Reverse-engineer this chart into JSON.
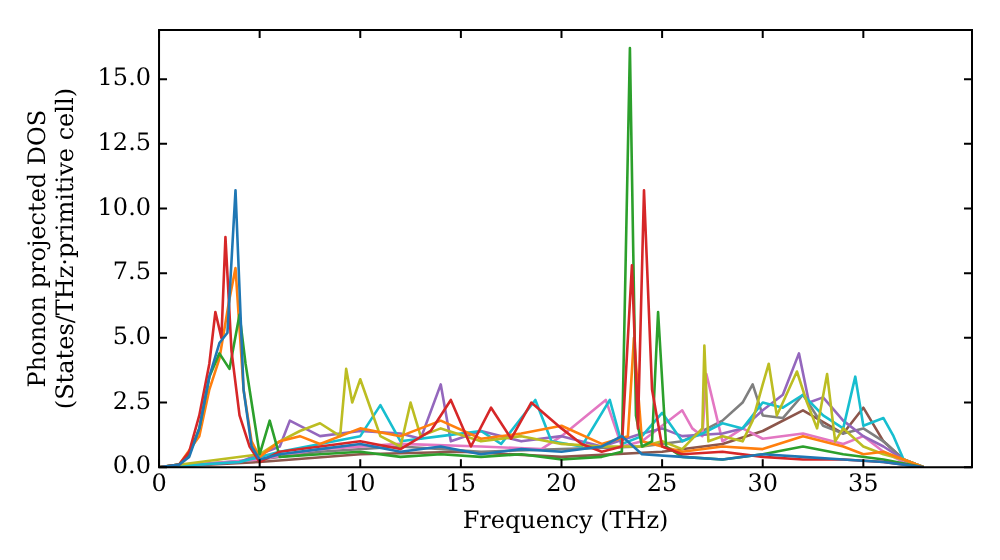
{
  "chart_data": {
    "type": "line",
    "xlabel": "Frequency (THz)",
    "ylabel": "Phonon projected DOS\n(States/THz·primitive cell)",
    "xlim": [
      0,
      40.4
    ],
    "ylim": [
      0,
      16.9
    ],
    "xticks": [
      0,
      5,
      10,
      15,
      20,
      25,
      30,
      35
    ],
    "yticks": [
      {
        "value": 0,
        "label": "0.0"
      },
      {
        "value": 2.5,
        "label": "2.5"
      },
      {
        "value": 5,
        "label": "5.0"
      },
      {
        "value": 7.5,
        "label": "7.5"
      },
      {
        "value": 10,
        "label": "10.0"
      },
      {
        "value": 12.5,
        "label": "12.5"
      },
      {
        "value": 15,
        "label": "15.0"
      }
    ],
    "grid": false,
    "legend": false,
    "marker": "none",
    "line_style": "solid",
    "series": [
      {
        "color": "#8c564b",
        "x": [
          0,
          5,
          10,
          15,
          20,
          25,
          28,
          30,
          32,
          34,
          35,
          36,
          37,
          38
        ],
        "values": [
          0,
          0.2,
          0.5,
          0.6,
          0.4,
          0.6,
          0.9,
          1.4,
          2.2,
          1.3,
          2.3,
          1,
          0.3,
          0
        ]
      },
      {
        "color": "#7f7f7f",
        "x": [
          0,
          5,
          8,
          12,
          16,
          20,
          24,
          26,
          28,
          29,
          29.5,
          30,
          31,
          32,
          33,
          34,
          35,
          36,
          37,
          38
        ],
        "values": [
          0,
          0.3,
          0.6,
          0.8,
          0.6,
          0.7,
          0.8,
          1,
          1.8,
          2.5,
          3.2,
          2,
          1.9,
          2.8,
          1.6,
          1.3,
          1.5,
          1,
          0.3,
          0
        ]
      },
      {
        "color": "#e377c2",
        "x": [
          0,
          5,
          8,
          12,
          16,
          19,
          20,
          22.2,
          23,
          24,
          26,
          26.5,
          27,
          27.2,
          28,
          29,
          30,
          32,
          34,
          35,
          36,
          37,
          38
        ],
        "values": [
          0,
          0.3,
          0.7,
          0.9,
          0.8,
          0.7,
          1.2,
          2.6,
          0.8,
          1,
          2.2,
          1.5,
          1.2,
          3.6,
          1,
          1.5,
          1.1,
          1.3,
          0.9,
          1.2,
          0.6,
          0.2,
          0
        ]
      },
      {
        "color": "#9467bd",
        "x": [
          0,
          4,
          6,
          6.5,
          8,
          10,
          12,
          13,
          14,
          14.5,
          16,
          18,
          20,
          22,
          24,
          25,
          26,
          28,
          29,
          30,
          31,
          31.8,
          32.3,
          33,
          34,
          35,
          36,
          37,
          38
        ],
        "values": [
          0,
          0.2,
          0.8,
          1.8,
          1.2,
          1.4,
          1.3,
          1.1,
          3.2,
          1,
          1.4,
          1,
          1.2,
          0.8,
          1.3,
          1.5,
          1.2,
          1.3,
          1.5,
          2.2,
          2.8,
          4.4,
          2.5,
          2.7,
          1.8,
          1.2,
          0.8,
          0.3,
          0
        ]
      },
      {
        "color": "#17becf",
        "x": [
          0,
          4,
          6,
          8,
          10,
          11,
          12,
          14,
          16,
          17,
          18.7,
          19.5,
          21,
          22.4,
          23,
          24,
          25,
          26,
          27,
          28,
          29,
          30,
          31,
          32,
          33,
          34,
          34.6,
          35,
          36,
          36.5,
          37,
          38
        ],
        "values": [
          0,
          0.2,
          0.6,
          0.9,
          1.2,
          2.4,
          1,
          1.2,
          1.4,
          0.9,
          2.6,
          1,
          0.8,
          2.6,
          0.9,
          1.2,
          2.1,
          1,
          1.3,
          1.7,
          1.5,
          2.5,
          2.3,
          2.8,
          2,
          1.5,
          3.5,
          1.6,
          1.9,
          1.2,
          0.3,
          0
        ]
      },
      {
        "color": "#bcbd22",
        "x": [
          0,
          3,
          5,
          6,
          7,
          8,
          9,
          9.3,
          9.6,
          10,
          10.5,
          11,
          12,
          12.5,
          13,
          14,
          16,
          18,
          20,
          22,
          24,
          25,
          26,
          27,
          27.1,
          27.3,
          28,
          29,
          29.5,
          30,
          30.3,
          30.7,
          31,
          31.7,
          32.2,
          32.7,
          33.2,
          33.6,
          34,
          35,
          36,
          37,
          38
        ],
        "values": [
          0,
          0.3,
          0.5,
          1,
          1.4,
          1.7,
          1.2,
          3.8,
          2.5,
          3.4,
          2.3,
          1.2,
          0.8,
          2.5,
          1.2,
          1.5,
          1,
          1.2,
          0.9,
          0.8,
          0.8,
          1,
          0.7,
          1.5,
          4.7,
          1,
          1.2,
          1,
          1.8,
          3.2,
          4,
          2,
          2.5,
          3.7,
          2.5,
          1.5,
          3.6,
          1,
          1.5,
          0.8,
          0.5,
          0.3,
          0
        ]
      },
      {
        "color": "#ff7f0e",
        "x": [
          0,
          1,
          2,
          2.5,
          3,
          3.5,
          3.8,
          4.2,
          4.6,
          5,
          6,
          7,
          8,
          10,
          12,
          14,
          16,
          18,
          20,
          22,
          23.3,
          23.6,
          24,
          26,
          28,
          30,
          32,
          34,
          35,
          36,
          37,
          38
        ],
        "values": [
          0,
          0.1,
          1.2,
          3,
          4.2,
          6.5,
          7.7,
          3,
          1,
          0.4,
          1,
          1.2,
          0.9,
          1.5,
          1.2,
          1.8,
          1.1,
          1.3,
          1.6,
          0.9,
          1.2,
          5,
          1,
          0.6,
          0.8,
          0.7,
          1.2,
          0.8,
          0.5,
          0.6,
          0.3,
          0
        ]
      },
      {
        "color": "#2ca02c",
        "x": [
          0,
          1,
          1.5,
          2,
          2.5,
          3,
          3.5,
          4,
          4.3,
          4.7,
          5,
          5.5,
          6,
          8,
          10,
          12,
          14,
          16,
          18,
          20,
          22,
          23,
          23.4,
          23.7,
          24,
          24.5,
          24.8,
          25.2,
          26,
          28,
          30,
          32,
          34,
          36,
          38
        ],
        "values": [
          0,
          0.1,
          0.5,
          1.5,
          3.5,
          4.4,
          3.8,
          5.9,
          4,
          2,
          0.5,
          1.8,
          0.4,
          0.5,
          0.6,
          0.4,
          0.5,
          0.4,
          0.5,
          0.3,
          0.4,
          0.6,
          16.2,
          2,
          0.8,
          1,
          6,
          0.8,
          0.4,
          0.3,
          0.5,
          0.8,
          0.5,
          0.3,
          0
        ]
      },
      {
        "color": "#d62728",
        "x": [
          0,
          1,
          1.5,
          2,
          2.5,
          2.8,
          3.1,
          3.3,
          3.6,
          4,
          4.5,
          5,
          6,
          8,
          10,
          12,
          13.5,
          14.5,
          15.5,
          16.5,
          17.5,
          18.5,
          20,
          21,
          22,
          23,
          23.5,
          23.8,
          24.1,
          24.5,
          25,
          26,
          28,
          30,
          32,
          34,
          36,
          38
        ],
        "values": [
          0,
          0.1,
          0.6,
          2,
          4,
          6,
          5,
          8.9,
          4.5,
          2,
          0.8,
          0.2,
          0.6,
          0.8,
          1,
          0.7,
          1.4,
          2.6,
          0.8,
          2.3,
          1.1,
          2.5,
          1.5,
          0.9,
          0.6,
          0.8,
          7.8,
          1.5,
          10.7,
          3,
          0.8,
          0.5,
          0.6,
          0.4,
          0.3,
          0.3,
          0.2,
          0
        ]
      },
      {
        "color": "#1f77b4",
        "x": [
          0,
          1,
          1.5,
          2,
          2.5,
          3,
          3.4,
          3.8,
          4.2,
          4.6,
          5,
          6,
          8,
          10,
          12,
          14,
          16,
          18,
          20,
          22,
          23,
          24,
          26,
          28,
          30,
          32,
          34,
          36,
          37,
          38
        ],
        "values": [
          0,
          0.1,
          0.4,
          1.5,
          3.5,
          4.8,
          5.2,
          10.7,
          3,
          0.8,
          0.3,
          0.5,
          0.7,
          0.9,
          0.6,
          0.8,
          0.5,
          0.7,
          0.6,
          0.8,
          1.2,
          0.5,
          0.4,
          0.3,
          0.5,
          0.4,
          0.3,
          0.2,
          0.1,
          0
        ]
      }
    ]
  }
}
